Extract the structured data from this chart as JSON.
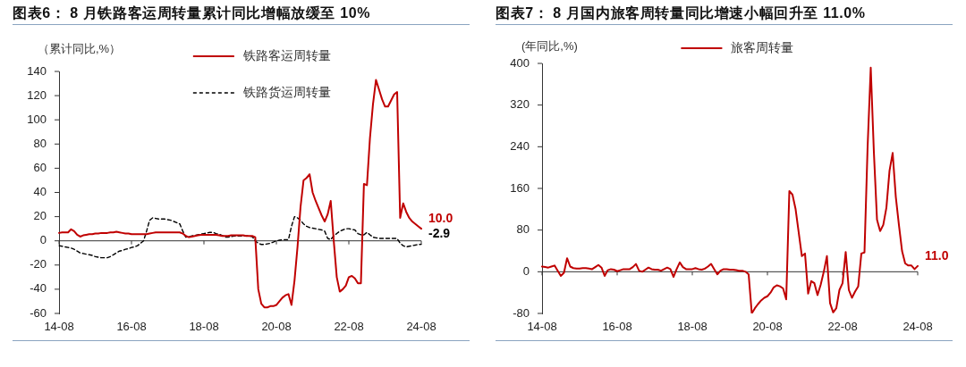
{
  "chart_data": [
    {
      "type": "line",
      "title": "图表6： 8 月铁路客运周转量累计同比增幅放缓至 10%",
      "ylabel": "（累计同比,%）",
      "categories": [
        "14-08",
        null,
        null,
        null,
        null,
        null,
        null,
        null,
        null,
        null,
        null,
        null,
        null,
        null,
        null,
        null,
        null,
        null,
        null,
        null,
        null,
        null,
        null,
        null,
        "16-08",
        null,
        null,
        null,
        null,
        null,
        null,
        null,
        null,
        null,
        null,
        null,
        null,
        null,
        null,
        null,
        null,
        null,
        null,
        null,
        null,
        null,
        null,
        null,
        "18-08",
        null,
        null,
        null,
        null,
        null,
        null,
        null,
        null,
        null,
        null,
        null,
        null,
        null,
        null,
        null,
        null,
        null,
        null,
        null,
        null,
        null,
        null,
        null,
        "20-08",
        null,
        null,
        null,
        null,
        null,
        null,
        null,
        null,
        null,
        null,
        null,
        null,
        null,
        null,
        null,
        null,
        null,
        null,
        null,
        null,
        null,
        null,
        null,
        "22-08",
        null,
        null,
        null,
        null,
        null,
        null,
        null,
        null,
        null,
        null,
        null,
        null,
        null,
        null,
        null,
        null,
        null,
        null,
        null,
        null,
        null,
        null,
        null,
        "24-08"
      ],
      "series": [
        {
          "name": "铁路客运周转量",
          "color": "#c00000",
          "line_style": "solid",
          "values": [
            6.5,
            7,
            7,
            7,
            9.5,
            8,
            5,
            3.5,
            4.5,
            5,
            5.5,
            5.5,
            6,
            6,
            6.5,
            6.5,
            6.5,
            7,
            7,
            7.5,
            7,
            6.5,
            6,
            6,
            5.5,
            5.5,
            5.5,
            5.5,
            5.5,
            5.5,
            6,
            6.5,
            7,
            7,
            7,
            7,
            7,
            7,
            7,
            7,
            7,
            6,
            4,
            3,
            3.5,
            4,
            4.5,
            5,
            5,
            5,
            5,
            5,
            5,
            4.5,
            4,
            4,
            4,
            4.5,
            4.5,
            4.5,
            4.5,
            4.5,
            4,
            4,
            4,
            3,
            -40,
            -52,
            -55,
            -55,
            -54,
            -54,
            -53,
            -50,
            -47,
            -45,
            -44,
            -53,
            -33,
            -5,
            28,
            50,
            52,
            55,
            40,
            33,
            27,
            21,
            16,
            22,
            33,
            0,
            -30,
            -42,
            -40,
            -37,
            -30,
            -29,
            -31,
            -35,
            -35,
            47,
            46,
            85,
            113,
            133,
            125,
            117,
            111,
            111,
            116,
            121,
            123,
            19,
            31,
            24,
            19,
            16,
            14,
            12,
            10.0
          ]
        },
        {
          "name": "铁路货运周转量",
          "color": "#000000",
          "line_style": "dashed",
          "values": [
            -4,
            -4.5,
            -5,
            -5.5,
            -6,
            -7,
            -8.5,
            -10,
            -10.5,
            -11,
            -11.5,
            -12,
            -13,
            -13.5,
            -14,
            -14,
            -14,
            -13,
            -11.5,
            -10,
            -8.5,
            -8,
            -7,
            -6.5,
            -5.5,
            -5,
            -4,
            -2,
            0,
            8,
            17,
            19,
            18.5,
            18,
            18,
            18,
            17.5,
            17,
            16,
            15,
            14,
            8,
            3,
            3.5,
            4,
            4.5,
            5,
            5.5,
            6,
            6.5,
            7,
            7,
            6,
            5.5,
            4.5,
            3,
            3,
            3.5,
            4,
            4,
            4,
            4,
            4,
            4,
            3.5,
            0,
            -2,
            -3,
            -3,
            -2.5,
            -2,
            -1,
            0,
            0.5,
            1,
            1,
            1,
            12,
            20,
            19,
            17,
            14,
            12,
            11,
            10.5,
            10,
            9.5,
            9,
            8,
            2,
            1,
            4,
            6,
            8,
            9,
            10,
            10,
            9.5,
            9,
            6,
            5,
            5,
            7,
            5,
            3,
            2.5,
            2,
            2,
            2,
            2,
            2,
            2,
            2,
            -2,
            -4,
            -5,
            -4.5,
            -4,
            -3.5,
            -3,
            -2.9
          ]
        }
      ],
      "ylim": [
        -60,
        140
      ],
      "yticks": [
        -60,
        -40,
        -20,
        0,
        20,
        40,
        60,
        80,
        100,
        120,
        140
      ],
      "grid": false,
      "legend": "top",
      "marker": "none",
      "ref_lines": [
        {
          "axis": "y",
          "value": 0,
          "color": "#333333"
        }
      ],
      "annotations": [
        {
          "text": "10.0",
          "x": "24-08",
          "y": 10.0
        },
        {
          "text": "-2.9",
          "x": "24-08",
          "y": -2.9
        }
      ]
    },
    {
      "type": "line",
      "title": "图表7： 8 月国内旅客周转量同比增速小幅回升至 11.0%",
      "ylabel": "(年同比,%)",
      "categories": [
        "14-08",
        null,
        null,
        null,
        null,
        null,
        null,
        null,
        null,
        null,
        null,
        null,
        null,
        null,
        null,
        null,
        null,
        null,
        null,
        null,
        null,
        null,
        null,
        null,
        "16-08",
        null,
        null,
        null,
        null,
        null,
        null,
        null,
        null,
        null,
        null,
        null,
        null,
        null,
        null,
        null,
        null,
        null,
        null,
        null,
        null,
        null,
        null,
        null,
        "18-08",
        null,
        null,
        null,
        null,
        null,
        null,
        null,
        null,
        null,
        null,
        null,
        null,
        null,
        null,
        null,
        null,
        null,
        null,
        null,
        null,
        null,
        null,
        null,
        "20-08",
        null,
        null,
        null,
        null,
        null,
        null,
        null,
        null,
        null,
        null,
        null,
        null,
        null,
        null,
        null,
        null,
        null,
        null,
        null,
        null,
        null,
        null,
        null,
        "22-08",
        null,
        null,
        null,
        null,
        null,
        null,
        null,
        null,
        null,
        null,
        null,
        null,
        null,
        null,
        null,
        null,
        null,
        null,
        null,
        null,
        null,
        null,
        null,
        "24-08"
      ],
      "series": [
        {
          "name": "旅客周转量",
          "color": "#c00000",
          "line_style": "solid",
          "values": [
            10,
            9,
            8,
            10,
            12,
            2,
            -8,
            -2,
            26,
            10,
            7,
            6,
            6,
            7,
            7,
            6,
            5,
            9,
            13,
            8,
            -8,
            3,
            5,
            4,
            1,
            3,
            5,
            5,
            5,
            9,
            15,
            2,
            0,
            4,
            8,
            5,
            4,
            4,
            2,
            5,
            8,
            5,
            -10,
            5,
            18,
            9,
            5,
            5,
            5,
            7,
            5,
            4,
            6,
            10,
            15,
            5,
            -5,
            2,
            5,
            5,
            4,
            4,
            3,
            2,
            2,
            0,
            -5,
            -80,
            -70,
            -62,
            -55,
            -50,
            -47,
            -40,
            -30,
            -26,
            -28,
            -32,
            -53,
            155,
            148,
            120,
            75,
            30,
            35,
            -42,
            -18,
            -22,
            -45,
            -25,
            0,
            30,
            -60,
            -78,
            -70,
            -35,
            -22,
            38,
            -35,
            -50,
            -38,
            -28,
            35,
            37,
            240,
            392,
            230,
            100,
            78,
            90,
            123,
            194,
            228,
            144,
            90,
            40,
            16,
            12,
            12,
            5,
            11.0
          ]
        }
      ],
      "ylim": [
        -80,
        400
      ],
      "yticks": [
        -80,
        0,
        80,
        160,
        240,
        320,
        400
      ],
      "grid": false,
      "legend": "top",
      "marker": "none",
      "ref_lines": [
        {
          "axis": "y",
          "value": 0,
          "color": "#333333"
        }
      ],
      "annotations": [
        {
          "text": "11.0",
          "x": "24-08",
          "y": 11.0
        }
      ]
    }
  ]
}
